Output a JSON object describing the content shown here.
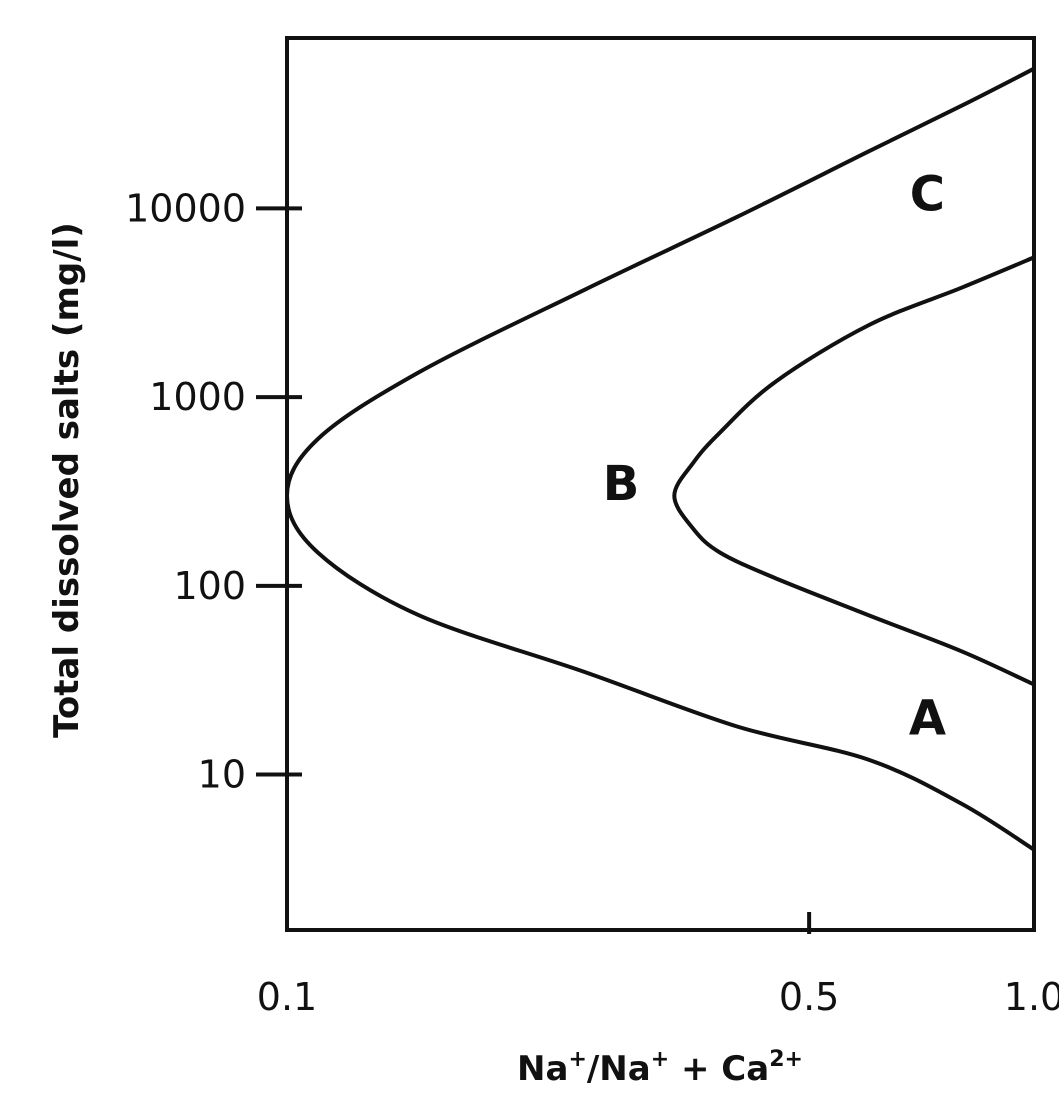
{
  "chart_data": {
    "type": "line",
    "ylabel": "Total dissolved salts (mg/l)",
    "x_ticks": [
      {
        "label": "0.1",
        "value": 0.1
      },
      {
        "label": "0.5",
        "value": 0.5
      },
      {
        "label": "1.0",
        "value": 1.0
      }
    ],
    "y_ticks": [
      {
        "label": "10000",
        "value": 10000
      },
      {
        "label": "1000",
        "value": 1000
      },
      {
        "label": "100",
        "value": 100
      },
      {
        "label": "10",
        "value": 10
      }
    ],
    "xlim": [
      0.1,
      1.0
    ],
    "ylim": [
      1.5,
      80000
    ],
    "y_scale": "log",
    "grid": false,
    "series": [
      {
        "x": [
          1.0,
          0.8,
          0.6,
          0.4,
          0.25,
          0.15,
          0.11,
          0.1,
          0.11,
          0.15,
          0.25,
          0.4,
          0.6,
          0.8,
          1.0
        ],
        "y": [
          4,
          7,
          12,
          18,
          35,
          70,
          150,
          300,
          600,
          1350,
          3700,
          9000,
          20000,
          35000,
          55000
        ]
      },
      {
        "x": [
          1.0,
          0.8,
          0.6,
          0.45,
          0.38,
          0.35,
          0.33,
          0.35,
          0.38,
          0.45,
          0.6,
          0.8,
          1.0
        ],
        "y": [
          30,
          45,
          70,
          110,
          150,
          200,
          300,
          450,
          650,
          1200,
          2400,
          3800,
          5500
        ]
      }
    ],
    "annotations": [
      {
        "text": "C",
        "x": 0.72,
        "y": 12000
      },
      {
        "text": "B",
        "x": 0.28,
        "y": 350
      },
      {
        "text": "A",
        "x": 0.72,
        "y": 20
      }
    ]
  }
}
